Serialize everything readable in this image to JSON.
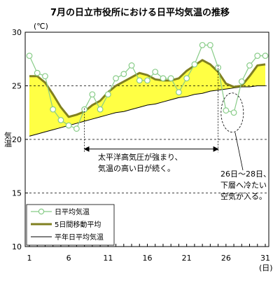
{
  "chart_data": {
    "type": "line",
    "title": "7月の日立市役所における日平均気温の推移",
    "unit_label": "(℃)",
    "xlabel": "(日)",
    "ylabel": "気温",
    "xlim": [
      1,
      31
    ],
    "ylim": [
      10,
      30
    ],
    "yticks": [
      10,
      15,
      20,
      25,
      30
    ],
    "xticks": [
      1,
      6,
      11,
      16,
      21,
      26,
      31
    ],
    "grid": "dashed horizontal at 15, 20, 25",
    "legend_position": "bottom-left",
    "x": [
      1,
      2,
      3,
      4,
      5,
      6,
      7,
      8,
      9,
      10,
      11,
      12,
      13,
      14,
      15,
      16,
      17,
      18,
      19,
      20,
      21,
      22,
      23,
      24,
      25,
      26,
      27,
      28,
      29,
      30,
      31
    ],
    "series": [
      {
        "name": "日平均気温",
        "color": "#88cc88",
        "marker": "circle",
        "values": [
          27.8,
          26.2,
          25.9,
          22.8,
          21.8,
          21.3,
          21.0,
          22.8,
          24.2,
          22.8,
          24.2,
          25.7,
          26.1,
          26.9,
          25.5,
          25.5,
          26.3,
          25.7,
          25.7,
          24.4,
          25.7,
          27.0,
          28.8,
          28.8,
          26.7,
          22.7,
          22.5,
          25.4,
          26.9,
          27.8,
          27.8
        ]
      },
      {
        "name": "5日間移動平均",
        "color": "#808020",
        "values": [
          25.9,
          25.9,
          25.3,
          24.2,
          23.0,
          22.1,
          22.3,
          22.6,
          23.2,
          23.6,
          24.4,
          25.0,
          25.4,
          25.8,
          26.2,
          26.0,
          25.6,
          25.5,
          25.5,
          25.7,
          26.4,
          26.9,
          27.4,
          27.0,
          26.3,
          25.2,
          24.9,
          25.0,
          25.9,
          26.9,
          27.0
        ]
      },
      {
        "name": "平年日平均気温",
        "color": "#000000",
        "values": [
          20.3,
          20.5,
          20.7,
          20.9,
          21.1,
          21.3,
          21.5,
          21.7,
          21.9,
          22.1,
          22.3,
          22.5,
          22.6,
          22.8,
          23.0,
          23.2,
          23.3,
          23.5,
          23.7,
          23.9,
          24.0,
          24.2,
          24.3,
          24.5,
          24.6,
          24.7,
          24.8,
          24.9,
          24.9,
          25.0,
          25.0
        ]
      }
    ],
    "fill_between": {
      "upper": "5日間移動平均",
      "lower": "平年日平均気温",
      "color": "#ffff44"
    },
    "annotations": [
      {
        "lines": [
          "太平洋高気圧が強まり、",
          "気温の高い日が続く。"
        ],
        "from_day": 8,
        "to_day": 25,
        "at_value": 19.1
      },
      {
        "lines": [
          "26日～28日、",
          "下層へ冷たい",
          "空気が入る。"
        ],
        "ellipse_center_day": 26.8,
        "ellipse_center_value": 22.5
      }
    ]
  }
}
